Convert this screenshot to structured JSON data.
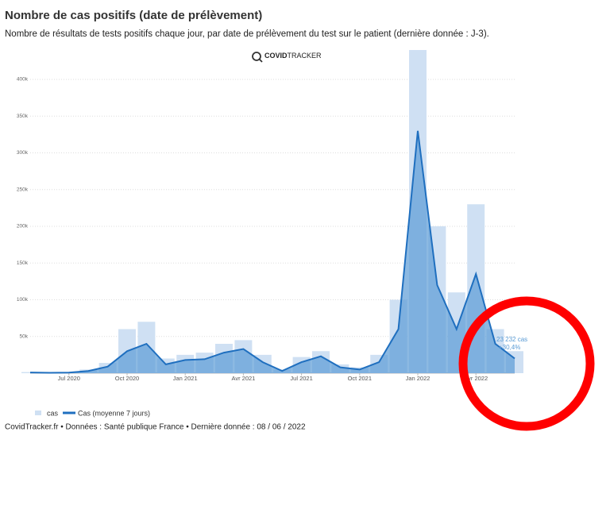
{
  "chart_data": {
    "type": "line",
    "title": "Nombre de cas positifs (date de prélèvement)",
    "subtitle": "Nombre de résultats de tests positifs chaque jour, par date de prélèvement du test sur le patient (dernière donnée : J-3).",
    "logo": [
      "COVID",
      "TRACKER"
    ],
    "x": [
      "2020-05",
      "2020-06",
      "2020-07",
      "2020-08",
      "2020-09",
      "2020-10",
      "2020-11",
      "2020-12",
      "2021-01",
      "2021-02",
      "2021-03",
      "2021-04",
      "2021-05",
      "2021-06",
      "2021-07",
      "2021-08",
      "2021-09",
      "2021-10",
      "2021-11",
      "2021-12",
      "2022-01",
      "2022-02",
      "2022-03",
      "2022-04",
      "2022-05",
      "2022-06"
    ],
    "series": [
      {
        "name": "cas",
        "type": "bar",
        "color": "#cfe0f3",
        "values": [
          1500,
          800,
          1200,
          5000,
          14000,
          60000,
          70000,
          20000,
          25000,
          28000,
          40000,
          45000,
          25000,
          5000,
          22000,
          30000,
          12000,
          8000,
          25000,
          100000,
          440000,
          200000,
          110000,
          230000,
          60000,
          30000
        ]
      },
      {
        "name": "Cas (moyenne 7 jours)",
        "type": "area",
        "color": "#1f6fbf",
        "values": [
          1000,
          500,
          800,
          3000,
          9000,
          30000,
          40000,
          12000,
          18000,
          19000,
          28000,
          33000,
          15000,
          3000,
          15000,
          23000,
          8000,
          5000,
          15000,
          60000,
          330000,
          120000,
          60000,
          135000,
          40000,
          20000
        ]
      }
    ],
    "xlim": [
      "2020-05",
      "2022-06"
    ],
    "xticks": [
      {
        "value": "2020-07",
        "label": "Jul 2020"
      },
      {
        "value": "2020-10",
        "label": "Oct 2020"
      },
      {
        "value": "2021-01",
        "label": "Jan 2021"
      },
      {
        "value": "2021-04",
        "label": "Avr 2021"
      },
      {
        "value": "2021-07",
        "label": "Jul 2021"
      },
      {
        "value": "2021-10",
        "label": "Oct 2021"
      },
      {
        "value": "2022-01",
        "label": "Jan 2022"
      },
      {
        "value": "2022-04",
        "label": "Avr 2022"
      }
    ],
    "ylim": [
      0,
      440000
    ],
    "yticks": [
      {
        "value": 50000,
        "label": "50k"
      },
      {
        "value": 100000,
        "label": "100k"
      },
      {
        "value": 150000,
        "label": "150k"
      },
      {
        "value": 200000,
        "label": "200k"
      },
      {
        "value": 250000,
        "label": "250k"
      },
      {
        "value": 300000,
        "label": "300k"
      },
      {
        "value": 350000,
        "label": "350k"
      },
      {
        "value": 400000,
        "label": "400k"
      }
    ],
    "grid": true,
    "annotation": [
      "23 232 cas",
      "+30,4%"
    ],
    "footer": "CovidTracker.fr • Données : Santé publique France • Dernière donnée : 08 / 06 / 2022"
  }
}
